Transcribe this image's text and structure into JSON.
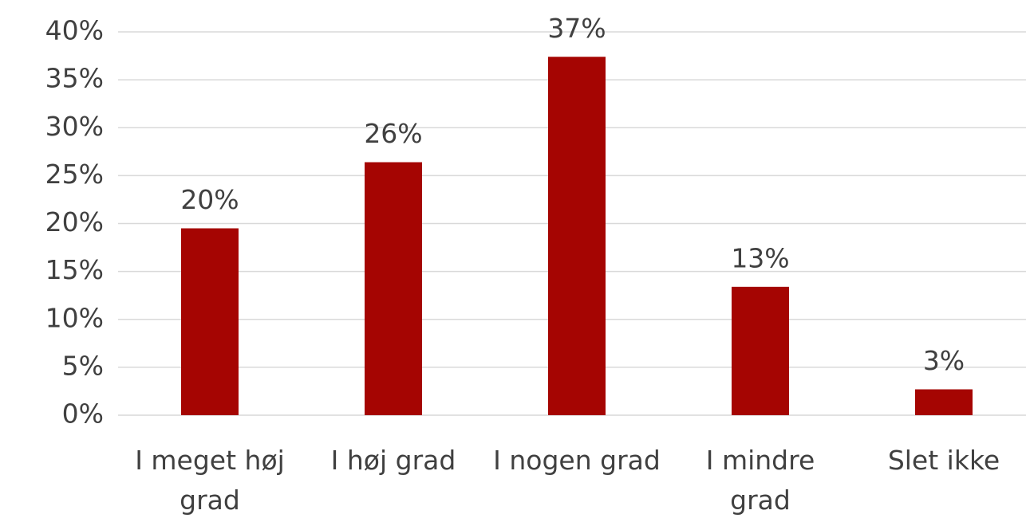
{
  "chart_data": {
    "type": "bar",
    "categories": [
      "I meget høj grad",
      "I høj grad",
      "I nogen grad",
      "I mindre grad",
      "Slet ikke"
    ],
    "values": [
      19.5,
      26.4,
      37.4,
      13.4,
      2.7
    ],
    "value_labels": [
      "20%",
      "26%",
      "37%",
      "13%",
      "3%"
    ],
    "color": "#a50502",
    "ylim": [
      0,
      40
    ],
    "yticks": [
      {
        "value": 0,
        "label": "0%"
      },
      {
        "value": 5,
        "label": "5%"
      },
      {
        "value": 10,
        "label": "10%"
      },
      {
        "value": 15,
        "label": "15%"
      },
      {
        "value": 20,
        "label": "20%"
      },
      {
        "value": 25,
        "label": "25%"
      },
      {
        "value": 30,
        "label": "30%"
      },
      {
        "value": 35,
        "label": "35%"
      },
      {
        "value": 40,
        "label": "40%"
      }
    ],
    "grid": true
  }
}
